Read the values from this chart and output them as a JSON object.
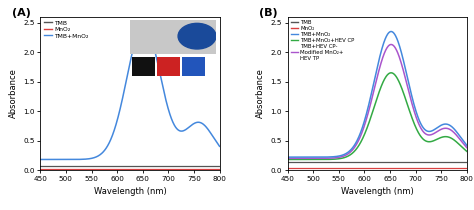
{
  "xlim": [
    450,
    800
  ],
  "ylim": [
    0,
    2.6
  ],
  "yticks": [
    0.0,
    0.5,
    1.0,
    1.5,
    2.0,
    2.5
  ],
  "xticks": [
    450,
    500,
    550,
    600,
    650,
    700,
    750,
    800
  ],
  "xlabel": "Wavelength (nm)",
  "ylabel": "Absorbance",
  "panel_A_label": "(A)",
  "panel_B_label": "(B)",
  "legend_A": [
    "TMB",
    "MnO₂",
    "TMB+MnO₂"
  ],
  "legend_B": [
    "TMB",
    "MnO₂",
    "TMB+MnO₂",
    "TMB+MnO₂+HEV CP",
    "TMB+HEV CP-\nModified MnO₂+\nHEV TP"
  ],
  "colors_A": [
    "#555555",
    "#d94040",
    "#4488dd"
  ],
  "colors_B": [
    "#555555",
    "#d94040",
    "#4488dd",
    "#33aa44",
    "#aa55cc"
  ],
  "bg_color": "#ffffff"
}
